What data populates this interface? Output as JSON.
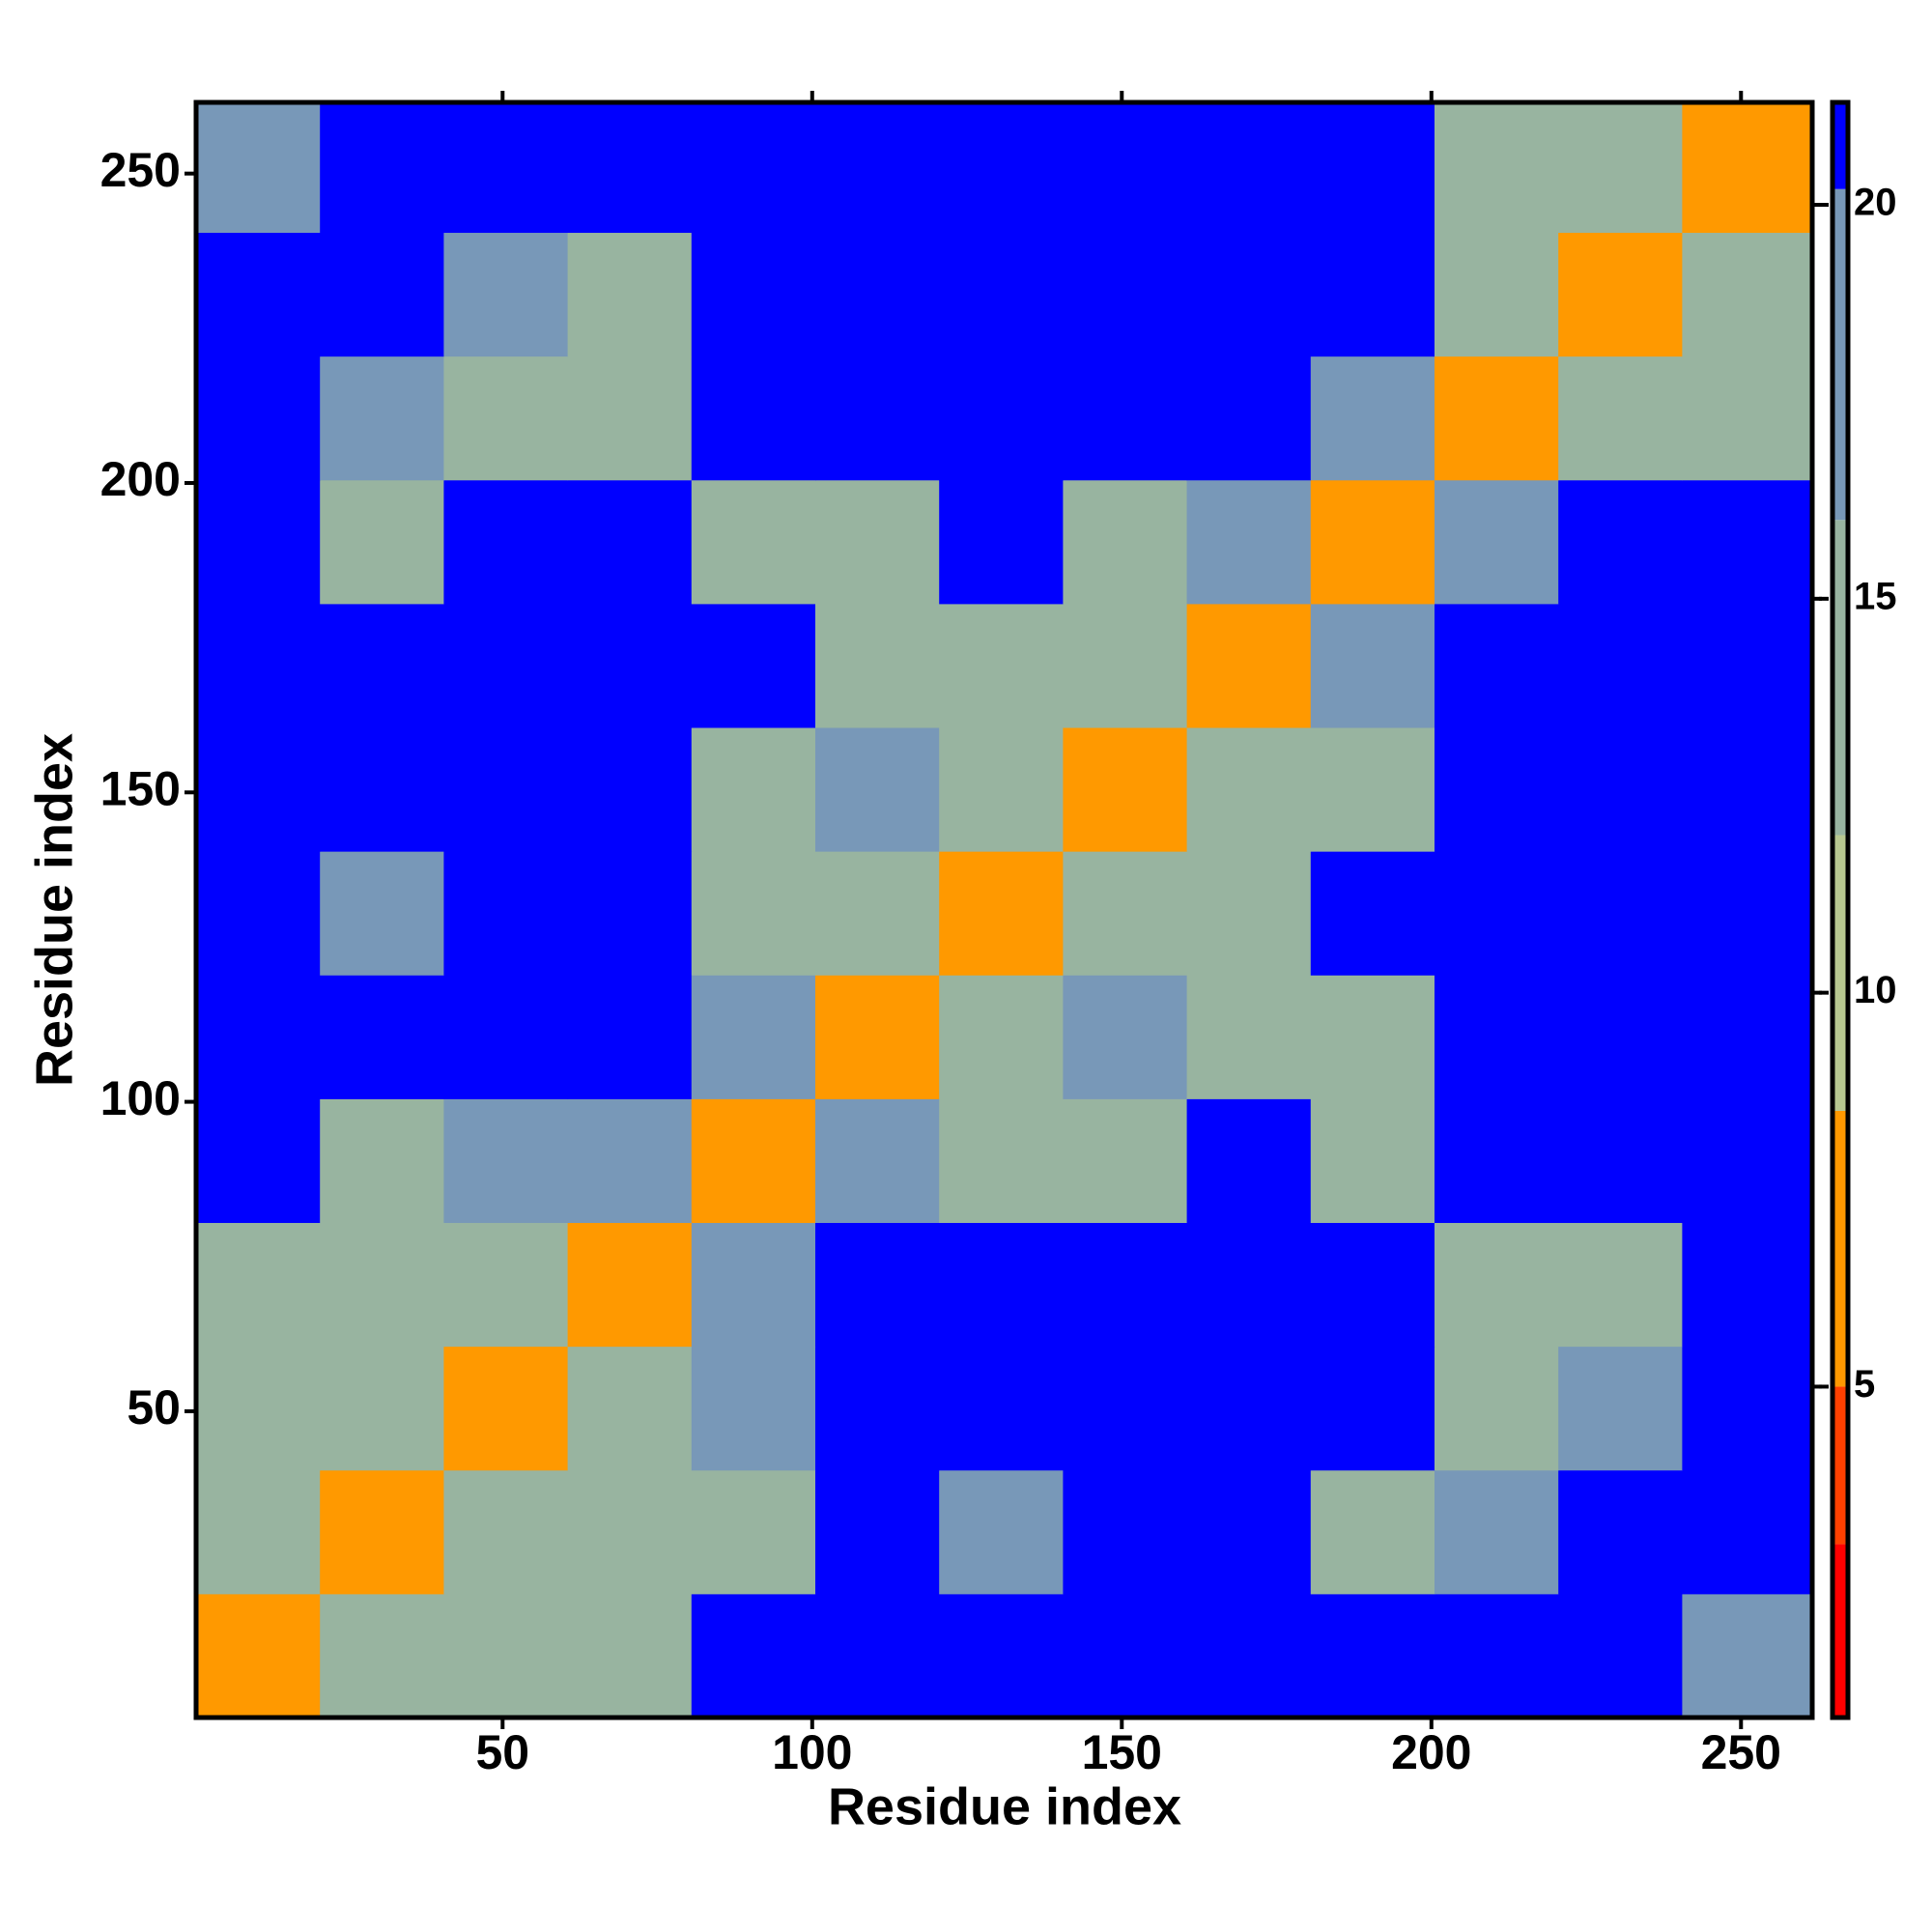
{
  "chart_data": {
    "type": "heatmap",
    "xlabel": "Residue index",
    "ylabel": "Residue index",
    "xlim": [
      0.5,
      261.5
    ],
    "ylim": [
      0.5,
      261.5
    ],
    "xticks": [
      50,
      100,
      150,
      200,
      250
    ],
    "yticks": [
      50,
      100,
      150,
      200,
      250
    ],
    "xbins": [
      0.5,
      20.5,
      40.5,
      60.5,
      80.5,
      100.5,
      120.5,
      140.5,
      160.5,
      180.5,
      200.5,
      220.5,
      240.5,
      261.5
    ],
    "ybins": [
      0.5,
      20.5,
      40.5,
      60.5,
      80.5,
      100.5,
      120.5,
      140.5,
      160.5,
      180.5,
      200.5,
      220.5,
      240.5,
      261.5
    ],
    "z": [
      [
        6,
        12,
        12,
        13,
        21,
        21,
        21,
        21,
        21,
        21,
        21,
        21,
        20
      ],
      [
        12,
        6,
        13,
        14,
        13,
        21,
        19,
        21,
        21,
        14,
        16,
        21,
        21
      ],
      [
        12,
        13,
        6,
        15,
        17,
        21,
        21,
        21,
        21,
        21,
        14,
        18,
        21
      ],
      [
        13,
        14,
        15,
        6,
        19,
        21,
        21,
        21,
        21,
        21,
        13,
        13,
        21
      ],
      [
        21,
        13,
        17,
        19,
        6,
        19,
        15,
        15,
        21,
        14,
        21,
        21,
        21
      ],
      [
        21,
        21,
        21,
        21,
        19,
        6,
        14,
        16,
        15,
        15,
        21,
        21,
        21
      ],
      [
        21,
        19,
        21,
        21,
        15,
        14,
        6,
        14,
        14,
        21,
        21,
        21,
        21
      ],
      [
        21,
        21,
        21,
        21,
        15,
        16,
        14,
        6,
        14,
        15,
        21,
        21,
        21
      ],
      [
        21,
        21,
        21,
        21,
        21,
        15,
        14,
        14,
        6,
        16,
        21,
        21,
        21
      ],
      [
        21,
        14,
        21,
        21,
        14,
        15,
        21,
        15,
        16,
        6,
        19,
        21,
        21
      ],
      [
        21,
        16,
        14,
        13,
        21,
        21,
        21,
        21,
        21,
        19,
        6,
        13,
        14
      ],
      [
        21,
        21,
        18,
        13,
        21,
        21,
        21,
        21,
        21,
        21,
        13,
        6,
        12
      ],
      [
        20,
        21,
        21,
        21,
        21,
        21,
        21,
        21,
        21,
        21,
        14,
        12,
        6
      ]
    ],
    "zlim": [
      0.8,
      21.3
    ],
    "zticks": [
      5,
      10,
      15,
      20
    ],
    "colorscale": [
      {
        "value": 0.8,
        "color": "#ff0000"
      },
      {
        "value": 3,
        "color": "#ff4000"
      },
      {
        "value": 5,
        "color": "#ff9900"
      },
      {
        "value": 8.5,
        "color": "#b8c890"
      },
      {
        "value": 12,
        "color": "#98b4a0"
      },
      {
        "value": 16,
        "color": "#7898b8"
      },
      {
        "value": 20.2,
        "color": "#0000ff"
      }
    ]
  }
}
